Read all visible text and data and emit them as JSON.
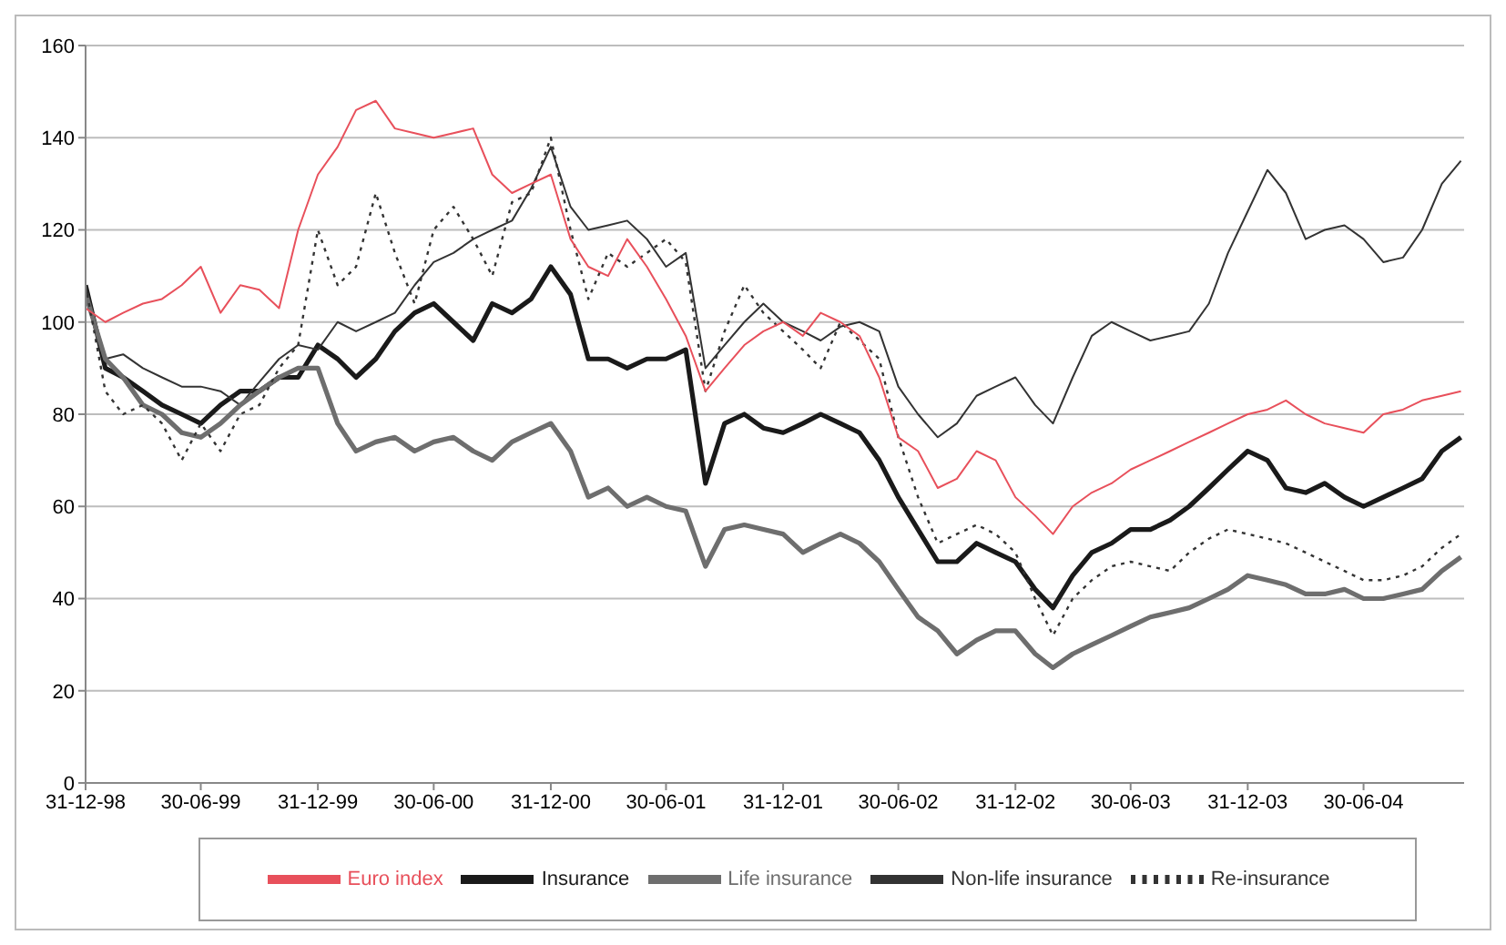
{
  "chart_data": {
    "type": "line",
    "x": [
      "1998-12-31",
      "1999-01-31",
      "1999-02-28",
      "1999-03-31",
      "1999-04-30",
      "1999-05-31",
      "1999-06-30",
      "1999-07-31",
      "1999-08-31",
      "1999-09-30",
      "1999-10-31",
      "1999-11-30",
      "1999-12-31",
      "2000-01-31",
      "2000-02-29",
      "2000-03-31",
      "2000-04-30",
      "2000-05-31",
      "2000-06-30",
      "2000-07-31",
      "2000-08-31",
      "2000-09-30",
      "2000-10-31",
      "2000-11-30",
      "2000-12-31",
      "2001-01-31",
      "2001-02-28",
      "2001-03-31",
      "2001-04-30",
      "2001-05-31",
      "2001-06-30",
      "2001-07-31",
      "2001-08-31",
      "2001-09-30",
      "2001-10-31",
      "2001-11-30",
      "2001-12-31",
      "2002-01-31",
      "2002-02-28",
      "2002-03-31",
      "2002-04-30",
      "2002-05-31",
      "2002-06-30",
      "2002-07-31",
      "2002-08-31",
      "2002-09-30",
      "2002-10-31",
      "2002-11-30",
      "2002-12-31",
      "2003-01-31",
      "2003-02-28",
      "2003-03-31",
      "2003-04-30",
      "2003-05-31",
      "2003-06-30",
      "2003-07-31",
      "2003-08-31",
      "2003-09-30",
      "2003-10-31",
      "2003-11-30",
      "2003-12-31",
      "2004-01-31",
      "2004-02-29",
      "2004-03-31",
      "2004-04-30",
      "2004-05-31",
      "2004-06-30",
      "2004-07-31",
      "2004-08-31",
      "2004-09-30",
      "2004-10-31",
      "2004-11-30"
    ],
    "series": [
      {
        "name": "Insurance",
        "color": "#1a1a1a",
        "line_style": "solid",
        "values": [
          108,
          90,
          88,
          85,
          82,
          80,
          78,
          82,
          85,
          85,
          88,
          88,
          95,
          92,
          88,
          92,
          98,
          102,
          104,
          100,
          96,
          104,
          102,
          105,
          112,
          106,
          92,
          92,
          90,
          92,
          92,
          94,
          65,
          78,
          80,
          77,
          76,
          78,
          80,
          78,
          76,
          70,
          62,
          55,
          48,
          48,
          52,
          50,
          48,
          42,
          38,
          45,
          50,
          52,
          55,
          55,
          57,
          60,
          64,
          68,
          72,
          70,
          64,
          63,
          65,
          62,
          60,
          62,
          64,
          66,
          72,
          75
        ]
      },
      {
        "name": "Non-life insurance",
        "color": "#333333",
        "line_style": "solid",
        "values": [
          108,
          92,
          93,
          90,
          88,
          86,
          86,
          85,
          82,
          87,
          92,
          95,
          94,
          100,
          98,
          100,
          102,
          108,
          113,
          115,
          118,
          120,
          122,
          129,
          138,
          125,
          120,
          121,
          122,
          118,
          112,
          115,
          90,
          95,
          100,
          104,
          100,
          98,
          96,
          99,
          100,
          98,
          86,
          80,
          75,
          78,
          84,
          86,
          88,
          82,
          78,
          88,
          97,
          100,
          98,
          96,
          97,
          98,
          104,
          115,
          124,
          133,
          128,
          118,
          120,
          121,
          118,
          113,
          114,
          120,
          130,
          135
        ]
      },
      {
        "name": "Life insurance",
        "color": "#6e6e6e",
        "line_style": "solid",
        "values": [
          106,
          92,
          88,
          82,
          80,
          76,
          75,
          78,
          82,
          85,
          88,
          90,
          90,
          78,
          72,
          74,
          75,
          72,
          74,
          75,
          72,
          70,
          74,
          76,
          78,
          72,
          62,
          64,
          60,
          62,
          60,
          59,
          47,
          55,
          56,
          55,
          54,
          50,
          52,
          54,
          52,
          48,
          42,
          36,
          33,
          28,
          31,
          33,
          33,
          28,
          25,
          28,
          30,
          32,
          34,
          36,
          37,
          38,
          40,
          42,
          45,
          44,
          43,
          41,
          41,
          42,
          40,
          40,
          41,
          42,
          46,
          49
        ]
      },
      {
        "name": "Re-insurance",
        "color": "#333333",
        "line_style": "dotted",
        "values": [
          108,
          85,
          80,
          82,
          78,
          70,
          78,
          72,
          80,
          82,
          90,
          95,
          120,
          108,
          112,
          128,
          115,
          104,
          120,
          125,
          118,
          110,
          126,
          128,
          140,
          120,
          105,
          115,
          112,
          115,
          118,
          113,
          85,
          98,
          108,
          102,
          98,
          94,
          90,
          100,
          96,
          92,
          75,
          62,
          52,
          54,
          56,
          54,
          50,
          40,
          32,
          40,
          44,
          47,
          48,
          47,
          46,
          50,
          53,
          55,
          54,
          53,
          52,
          50,
          48,
          46,
          44,
          44,
          45,
          47,
          51,
          54
        ]
      },
      {
        "name": "Euro index",
        "color": "#e8505b",
        "line_style": "solid",
        "values": [
          103,
          100,
          102,
          104,
          105,
          108,
          112,
          102,
          108,
          107,
          103,
          120,
          132,
          138,
          146,
          148,
          142,
          141,
          140,
          141,
          142,
          132,
          128,
          130,
          132,
          118,
          112,
          110,
          118,
          112,
          105,
          97,
          85,
          90,
          95,
          98,
          100,
          97,
          102,
          100,
          97,
          88,
          75,
          72,
          64,
          66,
          72,
          70,
          62,
          58,
          54,
          60,
          63,
          65,
          68,
          70,
          72,
          74,
          76,
          78,
          80,
          81,
          83,
          80,
          78,
          77,
          76,
          80,
          81,
          83,
          84,
          85
        ]
      }
    ],
    "xlim": [
      "1998-12-31",
      "2004-12-05"
    ],
    "xticks": [
      {
        "value": "1998-12-31",
        "label": "31-12-98"
      },
      {
        "value": "1999-06-30",
        "label": "30-06-99"
      },
      {
        "value": "1999-12-31",
        "label": "31-12-99"
      },
      {
        "value": "2000-06-30",
        "label": "30-06-00"
      },
      {
        "value": "2000-12-31",
        "label": "31-12-00"
      },
      {
        "value": "2001-06-30",
        "label": "30-06-01"
      },
      {
        "value": "2001-12-31",
        "label": "31-12-01"
      },
      {
        "value": "2002-06-30",
        "label": "30-06-02"
      },
      {
        "value": "2002-12-31",
        "label": "31-12-02"
      },
      {
        "value": "2003-06-30",
        "label": "30-06-03"
      },
      {
        "value": "2003-12-31",
        "label": "31-12-03"
      },
      {
        "value": "2004-06-30",
        "label": "30-06-04"
      }
    ],
    "ylim": [
      0,
      160
    ],
    "yticks": [
      0,
      20,
      40,
      60,
      80,
      100,
      120,
      140,
      160
    ],
    "grid": "y",
    "legend": "bottom",
    "marker": "none"
  }
}
